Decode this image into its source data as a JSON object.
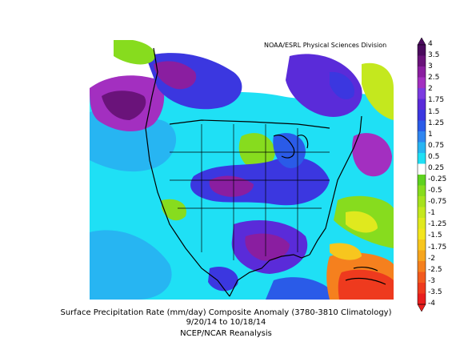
{
  "map": {
    "credit": "NOAA/ESRL Physical Sciences Division",
    "colorbar_ticks": [
      "4",
      "3.5",
      "3",
      "2.5",
      "2",
      "1.75",
      "1.5",
      "1.25",
      "1",
      "0.75",
      "0.5",
      "0.25",
      "-0.25",
      "-0.5",
      "-0.75",
      "-1",
      "-1.25",
      "-1.5",
      "-1.75",
      "-2",
      "-2.5",
      "-3",
      "-3.5",
      "-4"
    ],
    "colorbar_colors": [
      "#4b0b5e",
      "#6a137a",
      "#8a1ea0",
      "#a32fc0",
      "#7b3ae0",
      "#5a2bd9",
      "#3b37e0",
      "#2a5be8",
      "#2f86f0",
      "#27b5f2",
      "#1fe0f5",
      "#ffffff",
      "#5fd21f",
      "#87dc1e",
      "#a6e21e",
      "#c4e81e",
      "#e0e91e",
      "#f3e51e",
      "#f7c61e",
      "#f6a51e",
      "#f5801e",
      "#f25a1e",
      "#ee3a1e",
      "#e81e1e"
    ],
    "caption_line1": "Surface Precipitation Rate (mm/day) Composite Anomaly (3780-3810 Climatology)",
    "caption_line2": "9/20/14  to 10/18/14",
    "caption_line3": "NCEP/NCAR Reanalysis"
  }
}
